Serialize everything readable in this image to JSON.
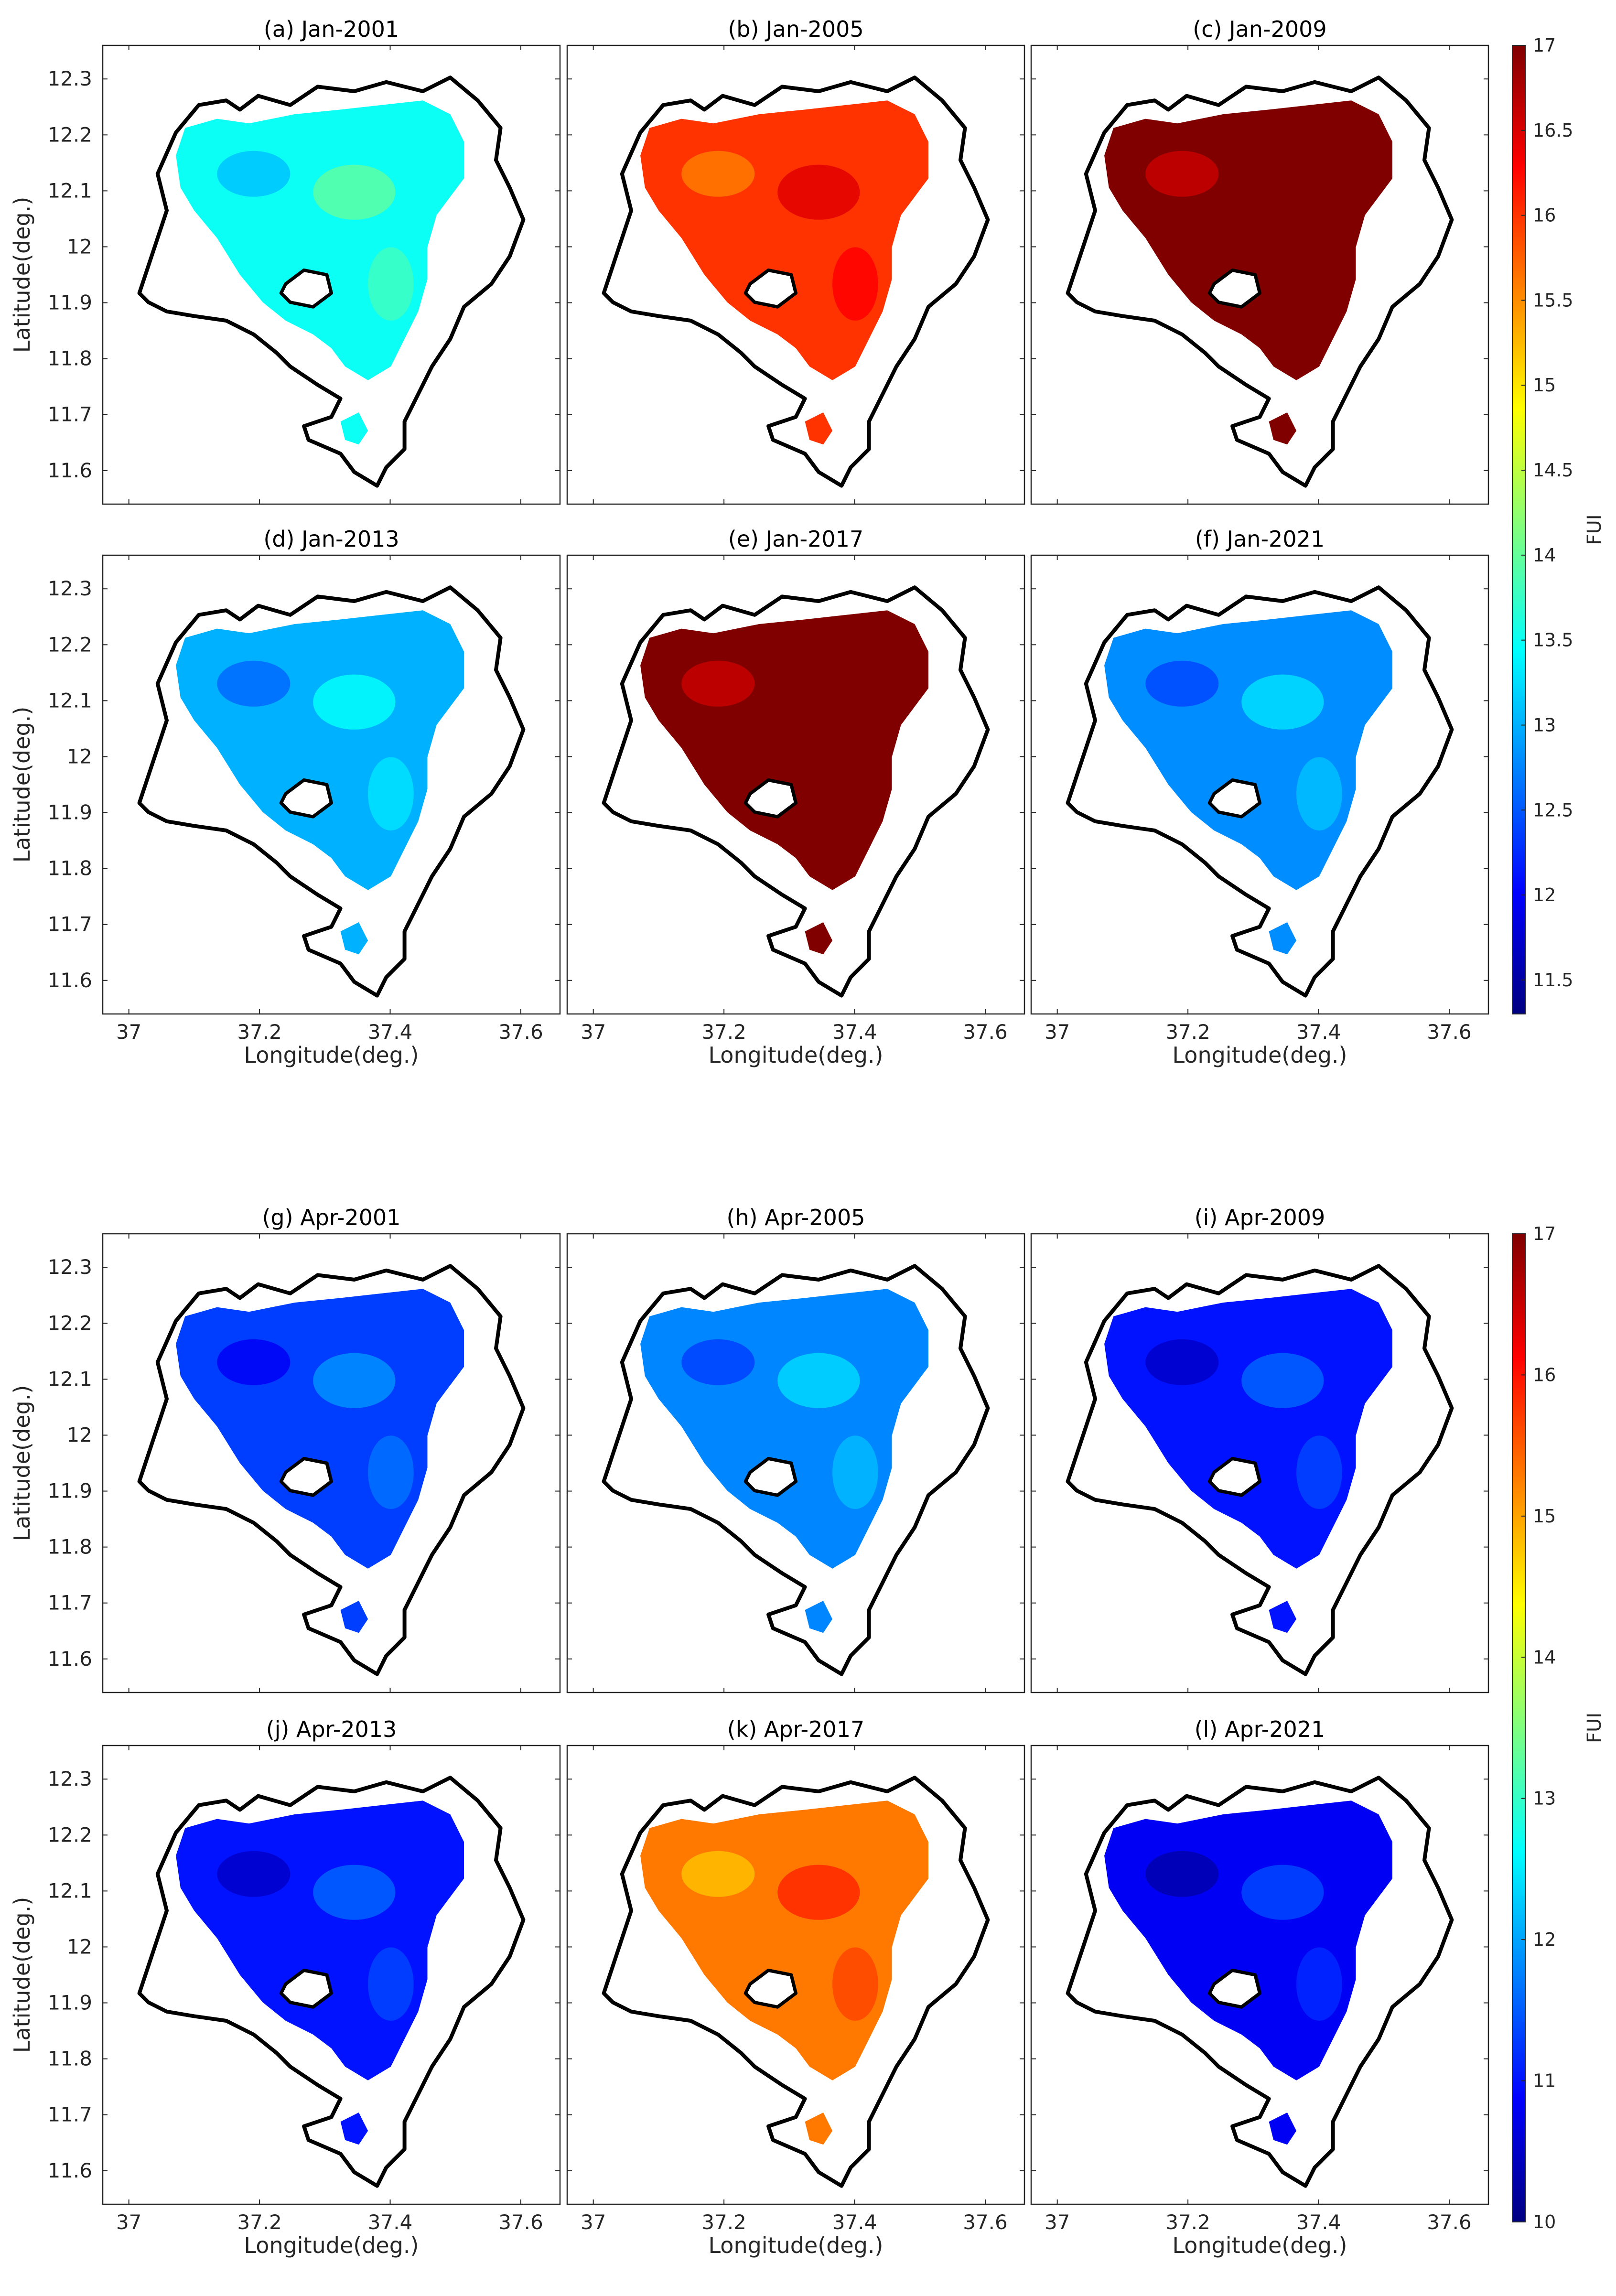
{
  "figure": {
    "x_label": "Longitude(deg.)",
    "y_label": "Latitude(deg.)",
    "x_ticks": [
      "37",
      "37.2",
      "37.4",
      "37.6"
    ],
    "y_ticks": [
      "12.3",
      "12.2",
      "12.1",
      "12",
      "11.9",
      "11.8",
      "11.7",
      "11.6"
    ]
  },
  "colorbars": [
    {
      "label": "FUI",
      "range": [
        11.3,
        17
      ],
      "ticks": [
        "17",
        "16.5",
        "16",
        "15.5",
        "15",
        "14.5",
        "14",
        "13.5",
        "13",
        "12.5",
        "12",
        "11.5"
      ]
    },
    {
      "label": "FUI",
      "range": [
        10,
        17
      ],
      "ticks": [
        "17",
        "16",
        "15",
        "14",
        "13",
        "12",
        "11",
        "10"
      ]
    }
  ],
  "chart_data": {
    "type": "heatmap",
    "xlim": [
      36.96,
      37.66
    ],
    "ylim": [
      11.54,
      12.36
    ],
    "panels": [
      {
        "title": "(a) Jan-2001",
        "group": "January",
        "dominant_fui": 13.5
      },
      {
        "title": "(b) Jan-2005",
        "group": "January",
        "dominant_fui": 16.0
      },
      {
        "title": "(c) Jan-2009",
        "group": "January",
        "dominant_fui": 17.0
      },
      {
        "title": "(d) Jan-2013",
        "group": "January",
        "dominant_fui": 13.0
      },
      {
        "title": "(e) Jan-2017",
        "group": "January",
        "dominant_fui": 17.0
      },
      {
        "title": "(f) Jan-2021",
        "group": "January",
        "dominant_fui": 12.8
      },
      {
        "title": "(g) Apr-2001",
        "group": "April",
        "dominant_fui": 11.3
      },
      {
        "title": "(h) Apr-2005",
        "group": "April",
        "dominant_fui": 11.8
      },
      {
        "title": "(i) Apr-2009",
        "group": "April",
        "dominant_fui": 11.0
      },
      {
        "title": "(j) Apr-2013",
        "group": "April",
        "dominant_fui": 11.0
      },
      {
        "title": "(k) Apr-2017",
        "group": "April",
        "dominant_fui": 15.3
      },
      {
        "title": "(l) Apr-2021",
        "group": "April",
        "dominant_fui": 10.8
      }
    ]
  }
}
